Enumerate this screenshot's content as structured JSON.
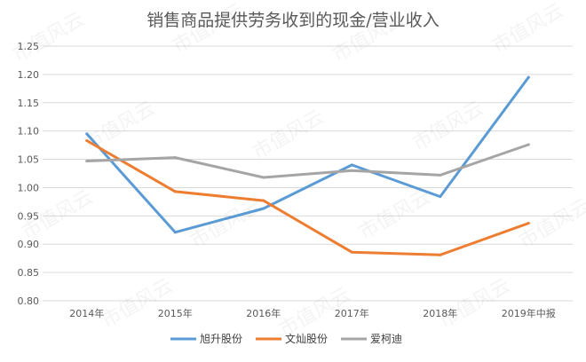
{
  "chart_data": {
    "type": "line",
    "title": "销售商品提供劳务收到的现金/营业收入",
    "categories": [
      "2014年",
      "2015年",
      "2016年",
      "2017年",
      "2018年",
      "2019年中报"
    ],
    "series": [
      {
        "name": "旭升股份",
        "color": "#5B9BD5",
        "values": [
          1.095,
          0.921,
          0.963,
          1.04,
          0.984,
          1.195
        ]
      },
      {
        "name": "文灿股份",
        "color": "#ED7D31",
        "values": [
          1.083,
          0.993,
          0.977,
          0.886,
          0.881,
          0.937
        ]
      },
      {
        "name": "爱柯迪",
        "color": "#A5A5A5",
        "values": [
          1.047,
          1.053,
          1.018,
          1.03,
          1.022,
          1.076
        ]
      }
    ],
    "ylim": [
      0.8,
      1.25
    ],
    "yticks": [
      "0.80",
      "0.85",
      "0.90",
      "0.95",
      "1.00",
      "1.05",
      "1.10",
      "1.15",
      "1.20",
      "1.25"
    ],
    "grid": true,
    "legend_position": "bottom"
  },
  "watermark": "市值风云"
}
